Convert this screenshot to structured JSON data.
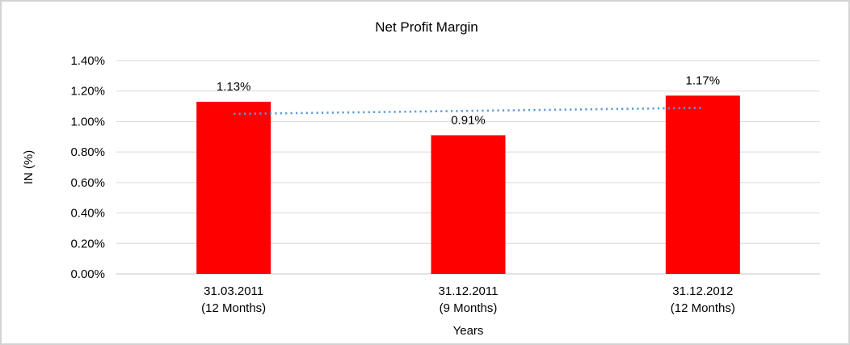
{
  "chart_data": {
    "type": "bar",
    "title": "Net Profit Margin",
    "xlabel": "Years",
    "ylabel": "IN (%)",
    "categories": [
      {
        "line1": "31.03.2011",
        "line2": "(12 Months)"
      },
      {
        "line1": "31.12.2011",
        "line2": "(9 Months)"
      },
      {
        "line1": "31.12.2012",
        "line2": "(12 Months)"
      }
    ],
    "values": [
      1.13,
      0.91,
      1.17
    ],
    "value_labels": [
      "1.13%",
      "0.91%",
      "1.17%"
    ],
    "ylim": [
      0,
      1.4
    ],
    "yticks": [
      0,
      0.2,
      0.4,
      0.6,
      0.8,
      1.0,
      1.2,
      1.4
    ],
    "ytick_labels": [
      "0.00%",
      "0.20%",
      "0.40%",
      "0.60%",
      "0.80%",
      "1.00%",
      "1.20%",
      "1.40%"
    ],
    "grid": true,
    "legend": false,
    "trendline": {
      "type": "linear",
      "style": "dotted",
      "endpoint_values": [
        1.05,
        1.09
      ]
    },
    "colors": {
      "bar": "#ff0000",
      "trendline": "#5b9bd5",
      "gridline": "#d9d9d9",
      "axisline": "#c6c6c6",
      "text": "#000000"
    }
  }
}
